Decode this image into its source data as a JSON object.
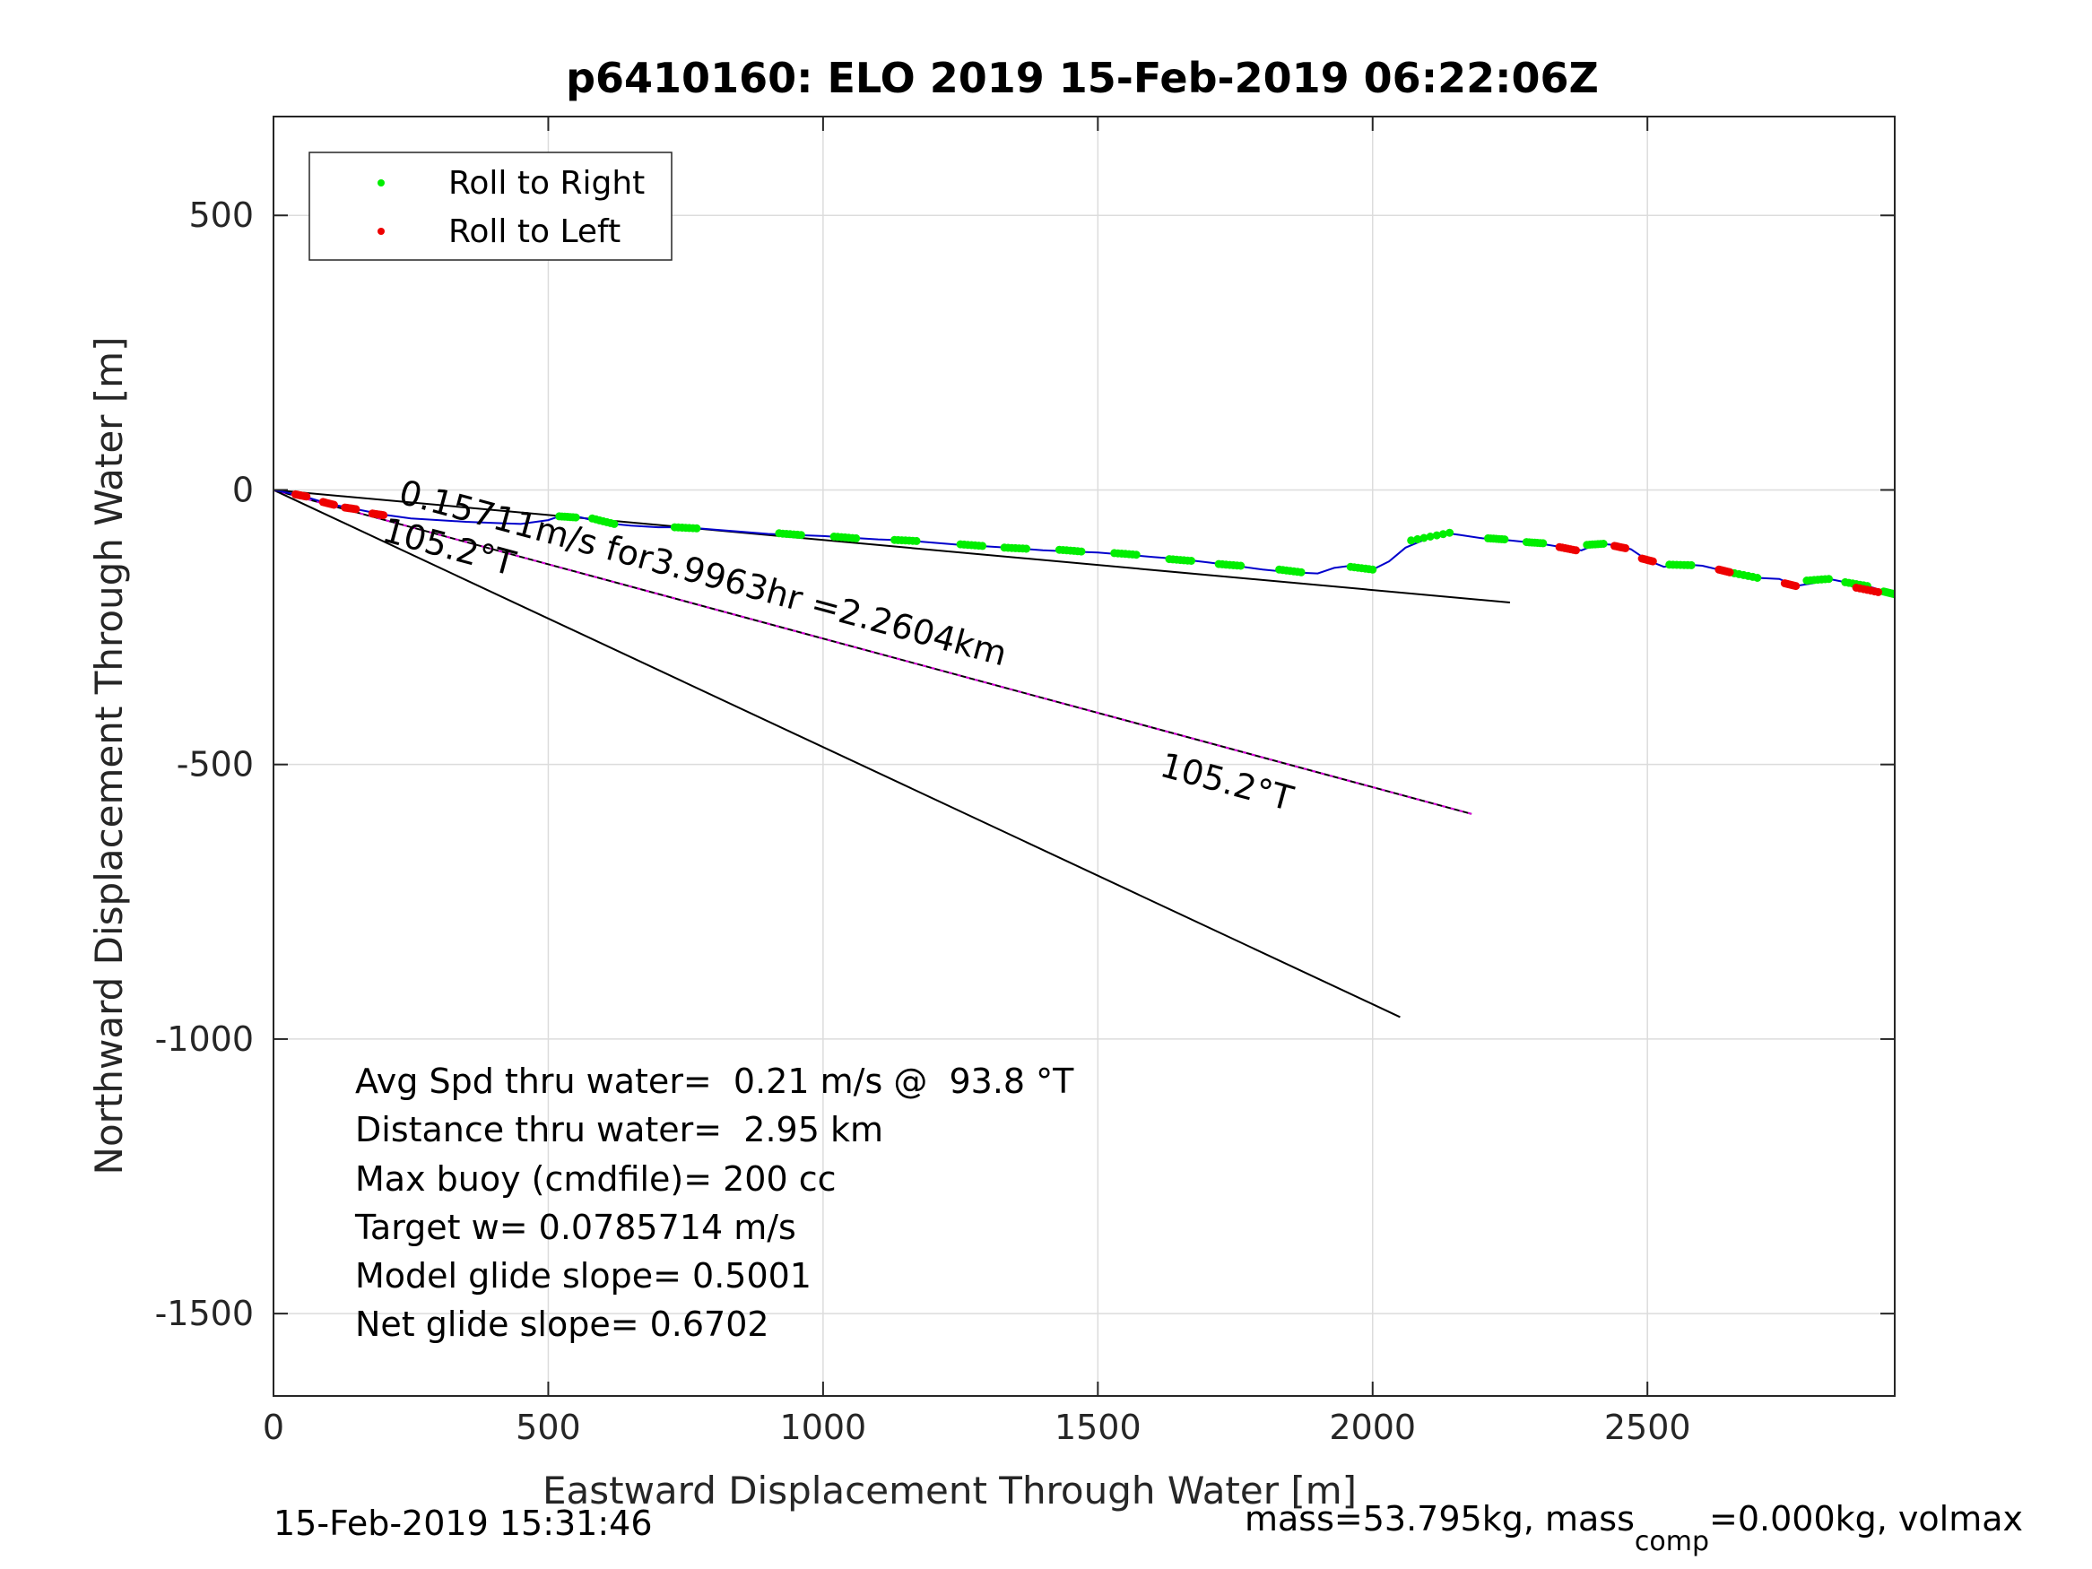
{
  "chart_data": {
    "type": "line",
    "title": "p6410160: ELO 2019 15-Feb-2019 06:22:06Z",
    "xlabel": "Eastward Displacement Through Water [m]",
    "ylabel": "Northward Displacement Through Water [m]",
    "xlim": [
      0,
      2950
    ],
    "ylim": [
      -1650,
      680
    ],
    "xticks": [
      0,
      500,
      1000,
      1500,
      2000,
      2500
    ],
    "yticks": [
      500,
      0,
      -500,
      -1000,
      -1500
    ],
    "grid": true,
    "legend": {
      "placement": "top-left",
      "entries": [
        {
          "label": "Roll to Right",
          "color": "#00ee00"
        },
        {
          "label": "Roll to Left",
          "color": "#ee0000"
        }
      ]
    },
    "colors": {
      "track": "#0000cc",
      "right": "#00ee00",
      "left": "#ee0000",
      "current": "#dd00dd",
      "axes": "#000000",
      "grid": "#dcdcdc"
    },
    "track": {
      "x": [
        0,
        50,
        100,
        150,
        200,
        250,
        300,
        350,
        400,
        450,
        500,
        520,
        540,
        560,
        600,
        650,
        700,
        750,
        800,
        850,
        900,
        950,
        1000,
        1050,
        1100,
        1150,
        1200,
        1250,
        1300,
        1350,
        1400,
        1450,
        1500,
        1550,
        1600,
        1650,
        1700,
        1750,
        1800,
        1850,
        1900,
        1930,
        1960,
        2000,
        2030,
        2060,
        2100,
        2130,
        2160,
        2200,
        2250,
        2300,
        2350,
        2380,
        2410,
        2440,
        2470,
        2500,
        2530,
        2560,
        2600,
        2650,
        2700,
        2740,
        2770,
        2800,
        2830,
        2860,
        2900,
        2950
      ],
      "y": [
        0,
        -10,
        -25,
        -35,
        -45,
        -52,
        -55,
        -58,
        -60,
        -62,
        -55,
        -48,
        -47,
        -50,
        -60,
        -65,
        -68,
        -68,
        -72,
        -76,
        -80,
        -82,
        -84,
        -87,
        -90,
        -92,
        -96,
        -100,
        -103,
        -106,
        -110,
        -112,
        -114,
        -118,
        -122,
        -126,
        -132,
        -138,
        -145,
        -150,
        -152,
        -142,
        -138,
        -145,
        -130,
        -105,
        -88,
        -78,
        -82,
        -88,
        -92,
        -97,
        -105,
        -110,
        -98,
        -100,
        -108,
        -128,
        -140,
        -135,
        -138,
        -150,
        -160,
        -162,
        -175,
        -170,
        -162,
        -168,
        -175,
        -190
      ]
    },
    "right_segments": [
      [
        [
          520,
          550
        ],
        [
          -48,
          -50
        ]
      ],
      [
        [
          580,
          620
        ],
        [
          -52,
          -62
        ]
      ],
      [
        [
          730,
          770
        ],
        [
          -68,
          -70
        ]
      ],
      [
        [
          920,
          960
        ],
        [
          -79,
          -82
        ]
      ],
      [
        [
          1020,
          1060
        ],
        [
          -85,
          -88
        ]
      ],
      [
        [
          1130,
          1170
        ],
        [
          -91,
          -93
        ]
      ],
      [
        [
          1250,
          1290
        ],
        [
          -99,
          -102
        ]
      ],
      [
        [
          1330,
          1370
        ],
        [
          -105,
          -107
        ]
      ],
      [
        [
          1430,
          1470
        ],
        [
          -109,
          -112
        ]
      ],
      [
        [
          1530,
          1570
        ],
        [
          -115,
          -118
        ]
      ],
      [
        [
          1630,
          1670
        ],
        [
          -126,
          -129
        ]
      ],
      [
        [
          1720,
          1760
        ],
        [
          -135,
          -138
        ]
      ],
      [
        [
          1830,
          1870
        ],
        [
          -145,
          -150
        ]
      ],
      [
        [
          1960,
          2000
        ],
        [
          -140,
          -145
        ]
      ],
      [
        [
          2070,
          2140
        ],
        [
          -92,
          -78
        ]
      ],
      [
        [
          2210,
          2240
        ],
        [
          -88,
          -90
        ]
      ],
      [
        [
          2280,
          2310
        ],
        [
          -95,
          -97
        ]
      ],
      [
        [
          2390,
          2420
        ],
        [
          -100,
          -98
        ]
      ],
      [
        [
          2540,
          2580
        ],
        [
          -136,
          -137
        ]
      ],
      [
        [
          2650,
          2700
        ],
        [
          -150,
          -160
        ]
      ],
      [
        [
          2790,
          2830
        ],
        [
          -165,
          -162
        ]
      ],
      [
        [
          2860,
          2900
        ],
        [
          -168,
          -175
        ]
      ],
      [
        [
          2930,
          2950
        ],
        [
          -185,
          -190
        ]
      ]
    ],
    "left_segments": [
      [
        [
          40,
          60
        ],
        [
          -8,
          -12
        ]
      ],
      [
        [
          90,
          110
        ],
        [
          -22,
          -27
        ]
      ],
      [
        [
          130,
          150
        ],
        [
          -32,
          -35
        ]
      ],
      [
        [
          180,
          200
        ],
        [
          -43,
          -46
        ]
      ],
      [
        [
          2340,
          2370
        ],
        [
          -104,
          -110
        ]
      ],
      [
        [
          2440,
          2460
        ],
        [
          -102,
          -106
        ]
      ],
      [
        [
          2490,
          2510
        ],
        [
          -125,
          -130
        ]
      ],
      [
        [
          2630,
          2650
        ],
        [
          -145,
          -150
        ]
      ],
      [
        [
          2750,
          2770
        ],
        [
          -170,
          -175
        ]
      ],
      [
        [
          2880,
          2920
        ],
        [
          -178,
          -186
        ]
      ]
    ],
    "reference_lines": [
      {
        "x": [
          0,
          2250
        ],
        "y": [
          0,
          -205
        ]
      },
      {
        "x": [
          0,
          2050
        ],
        "y": [
          0,
          -960
        ]
      },
      {
        "x": [
          0,
          2180
        ],
        "y": [
          0,
          -590
        ],
        "current": true
      }
    ],
    "annotations": [
      {
        "text": "0.15711m/s for3.9963hr =2.2604km",
        "x": 225,
        "y": -23,
        "rotation": 15.1
      },
      {
        "text": "105.2°T",
        "x": 195,
        "y": -92,
        "rotation": 15.1
      },
      {
        "text": "105.2°T",
        "x": 1610,
        "y": -520,
        "rotation": 15.1
      }
    ],
    "stats": [
      "Avg Spd thru water=  0.21 m/s @  93.8 °T",
      "Distance thru water=  2.95 km",
      "Max buoy (cmdfile)= 200 cc",
      "Target w= 0.0785714 m/s",
      "Model glide slope= 0.5001",
      "Net glide slope= 0.6702"
    ],
    "footer_left": "15-Feb-2019 15:31:46",
    "footer_right_pre": "mass=53.795kg, mass",
    "footer_right_sub": "comp",
    "footer_right_post": "=0.000kg, volmax"
  }
}
